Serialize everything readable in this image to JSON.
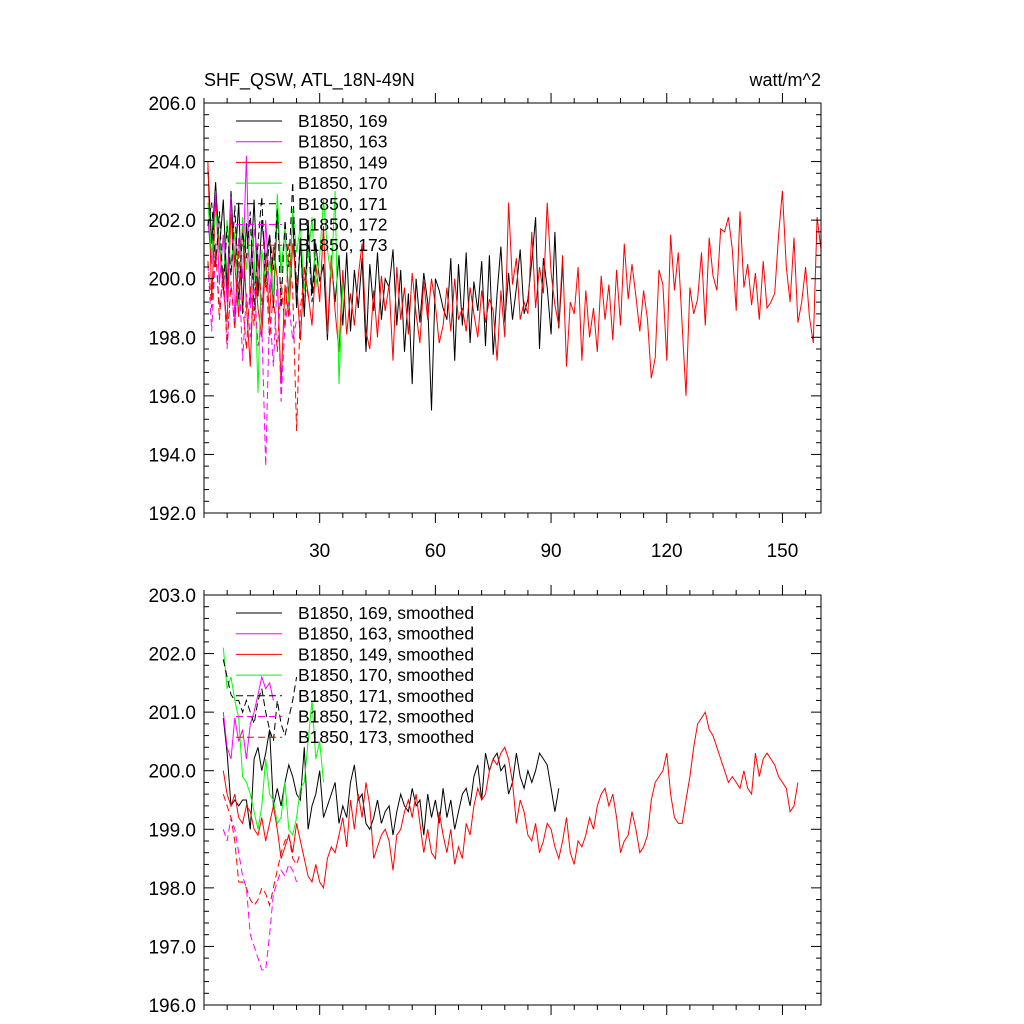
{
  "chart_data": [
    {
      "type": "line",
      "title_left": "SHF_QSW, ATL_18N-49N",
      "title_right": "watt/m^2",
      "xlim": [
        0,
        160
      ],
      "ylim": [
        192.0,
        206.0
      ],
      "yticks": [
        "192.0",
        "194.0",
        "196.0",
        "198.0",
        "200.0",
        "202.0",
        "204.0",
        "206.0"
      ],
      "xticks": [
        "30",
        "60",
        "90",
        "120",
        "150"
      ],
      "grid": false,
      "legend_position": "top-left",
      "series": [
        {
          "name": "B1850, 169",
          "color": "#000000",
          "dash": false,
          "x_start": 1,
          "values": [
            203.8,
            201.2,
            203.3,
            201.0,
            202.7,
            199.6,
            203.0,
            200.4,
            202.6,
            198.8,
            201.9,
            200.1,
            202.7,
            199.4,
            202.0,
            200.6,
            201.5,
            199.0,
            202.4,
            200.2,
            201.7,
            199.3,
            202.2,
            199.0,
            201.4,
            198.7,
            202.0,
            199.5,
            201.2,
            199.9,
            200.5,
            197.9,
            200.6,
            199.2,
            200.8,
            198.4,
            200.9,
            198.2,
            200.3,
            199.0,
            200.7,
            197.5,
            200.5,
            198.9,
            200.9,
            198.6,
            200.0,
            199.7,
            201.0,
            198.4,
            200.3,
            197.5,
            199.5,
            196.4,
            200.0,
            198.5,
            200.2,
            199.2,
            195.5,
            200.0,
            199.6,
            199.0,
            198.6,
            200.7,
            197.2,
            200.5,
            198.4,
            200.9,
            197.8,
            199.9,
            198.9,
            200.6,
            197.7,
            200.8,
            197.4,
            199.5,
            201.1,
            198.5,
            200.2,
            198.6,
            199.7,
            201.0,
            198.8,
            199.3,
            200.6,
            202.1,
            197.6,
            200.7,
            199.7,
            198.1,
            201.6,
            198.3,
            200.4
          ]
        },
        {
          "name": "B1850, 163",
          "color": "#ff00ff",
          "dash": false,
          "x_start": 1,
          "values": [
            202.0,
            200.5,
            203.0,
            199.8,
            201.5,
            199.2,
            202.8,
            198.6,
            201.4,
            200.0,
            204.2,
            199.0,
            201.7,
            200.8,
            198.4,
            202.0,
            199.5,
            201.0
          ]
        },
        {
          "name": "B1850, 149",
          "color": "#ff0000",
          "dash": false,
          "x_start": 1,
          "values": [
            204.0,
            199.3,
            202.6,
            201.1,
            199.6,
            198.5,
            202.2,
            200.5,
            198.7,
            201.9,
            199.1,
            197.0,
            200.6,
            199.0,
            198.0,
            200.8,
            198.7,
            201.1,
            200.0,
            196.4,
            199.8,
            198.7,
            201.2,
            199.9,
            197.9,
            200.4,
            199.5,
            198.4,
            200.5,
            199.2,
            201.8,
            198.1,
            200.8,
            198.9,
            197.5,
            200.3,
            198.1,
            199.5,
            198.4,
            200.1,
            201.2,
            198.2,
            197.6,
            199.6,
            198.0,
            200.1,
            198.9,
            199.8,
            197.2,
            200.4,
            198.6,
            199.7,
            198.1,
            200.2,
            198.8,
            197.8,
            199.9,
            198.6,
            200.0,
            199.1,
            197.8,
            198.4,
            199.7,
            198.2,
            200.0,
            198.6,
            199.0,
            198.2,
            199.7,
            198.8,
            198.0,
            199.6,
            198.5,
            199.3,
            198.9,
            197.2,
            199.6,
            198.0,
            202.6,
            199.8,
            200.7,
            198.6,
            199.2,
            198.8,
            201.6,
            199.0,
            200.4,
            199.5,
            202.6,
            200.2,
            199.1,
            198.4,
            200.8,
            197.0,
            199.2,
            198.8,
            200.4,
            197.2,
            199.6,
            198.0,
            199.0,
            197.5,
            200.1,
            198.6,
            199.8,
            197.9,
            200.3,
            198.4,
            201.2,
            199.3,
            200.5,
            199.4,
            198.2,
            199.6,
            198.6,
            196.6,
            197.3,
            200.3,
            199.8,
            197.2,
            201.5,
            199.6,
            200.9,
            198.4,
            196.0,
            199.7,
            198.8,
            199.3,
            200.9,
            198.4,
            201.4,
            200.1,
            199.6,
            201.7,
            201.6,
            202.1,
            201.0,
            198.9,
            202.3,
            199.7,
            200.5,
            199.1,
            200.2,
            198.6,
            200.6,
            199.0,
            199.2,
            199.5,
            201.5,
            203.0,
            200.4,
            199.2,
            201.4,
            198.5,
            199.2,
            200.4,
            198.7,
            197.8,
            202.1,
            201.0
          ]
        },
        {
          "name": "B1850, 170",
          "color": "#00ff00",
          "dash": false,
          "x_start": 1,
          "values": [
            202.6,
            200.8,
            202.3,
            201.4,
            199.9,
            202.0,
            200.4,
            201.6,
            199.1,
            202.1,
            200.3,
            201.7,
            200.9,
            196.1,
            201.0,
            199.8,
            200.6,
            199.4,
            202.9,
            200.2,
            201.7,
            199.0,
            202.4,
            200.9,
            201.8,
            199.6,
            200.7,
            202.1,
            199.7,
            200.8,
            202.7,
            201.0,
            200.0,
            203.0,
            196.4,
            199.8
          ]
        },
        {
          "name": "B1850, 171",
          "color": "#000000",
          "dash": true,
          "x_start": 1,
          "values": [
            201.8,
            202.6,
            200.4,
            202.3,
            199.6,
            201.8,
            200.1,
            202.5,
            199.3,
            201.6,
            200.7,
            202.3,
            198.9,
            201.2,
            202.8,
            199.7,
            201.5,
            200.3,
            202.4,
            199.0,
            202.0,
            200.4,
            203.3,
            199.5,
            201.2,
            198.8,
            201.5,
            199.2,
            200.7
          ]
        },
        {
          "name": "B1850, 172",
          "color": "#ff00ff",
          "dash": true,
          "x_start": 1,
          "values": [
            200.5,
            198.2,
            201.0,
            199.0,
            200.2,
            197.6,
            199.8,
            198.3,
            200.6,
            197.2,
            199.5,
            198.0,
            199.9,
            197.7,
            198.4,
            193.6,
            199.0,
            197.0,
            200.1,
            195.8,
            198.5,
            199.2,
            197.9,
            198.6
          ]
        },
        {
          "name": "B1850, 173",
          "color": "#ff0000",
          "dash": true,
          "x_start": 1,
          "values": [
            200.6,
            199.0,
            201.2,
            198.6,
            200.4,
            197.8,
            199.9,
            198.3,
            201.0,
            199.2,
            197.6,
            199.8,
            198.4,
            200.7,
            199.1,
            200.2,
            198.0,
            199.5,
            197.5,
            199.9,
            198.3,
            201.2,
            199.6,
            194.8,
            199.0,
            200.1,
            199.4
          ]
        }
      ]
    },
    {
      "type": "line",
      "xlim": [
        0,
        160
      ],
      "ylim": [
        196.0,
        203.0
      ],
      "yticks": [
        "196.0",
        "197.0",
        "198.0",
        "199.0",
        "200.0",
        "201.0",
        "202.0",
        "203.0"
      ],
      "grid": false,
      "legend_position": "top-left",
      "series": [
        {
          "name": "B1850, 169, smoothed",
          "color": "#000000",
          "dash": false,
          "x_start": 5,
          "values": [
            200.9,
            200.3,
            199.4,
            199.5,
            199.4,
            199.5,
            199.5,
            199.0,
            200.2,
            200.4,
            200.0,
            200.3,
            200.7,
            199.4,
            199.7,
            199.4,
            199.8,
            200.1,
            199.9,
            199.6,
            199.5,
            200.4,
            199.0,
            199.4,
            199.6,
            200.0,
            199.2,
            199.4,
            199.6,
            199.8,
            199.1,
            199.4,
            199.2,
            199.8,
            200.1,
            199.5,
            199.6,
            199.1,
            199.0,
            199.2,
            199.5,
            199.1,
            199.3,
            199.4,
            198.9,
            199.3,
            199.6,
            199.4,
            199.3,
            199.7,
            199.4,
            199.5,
            198.9,
            199.6,
            199.2,
            199.5,
            199.1,
            199.7,
            199.2,
            199.5,
            199.0,
            199.3,
            199.6,
            199.7,
            199.4,
            199.9,
            200.1,
            199.5,
            200.3,
            200.0,
            200.2,
            200.3,
            200.0,
            200.1,
            199.6,
            199.8,
            200.3,
            199.9,
            199.7,
            200.0,
            199.8,
            200.0,
            200.3,
            200.2,
            200.1,
            199.7,
            199.3,
            199.7
          ]
        },
        {
          "name": "B1850, 163, smoothed",
          "color": "#ff00ff",
          "dash": false,
          "x_start": 5,
          "values": [
            201.0,
            200.4,
            200.2,
            200.9,
            200.5,
            200.7,
            200.2,
            200.8,
            201.0,
            201.3,
            201.6,
            201.4,
            201.5,
            201.2
          ]
        },
        {
          "name": "B1850, 149, smoothed",
          "color": "#ff0000",
          "dash": false,
          "x_start": 5,
          "values": [
            200.0,
            199.6,
            199.4,
            199.6,
            199.2,
            199.1,
            199.4,
            199.3,
            199.0,
            198.9,
            199.2,
            198.8,
            199.1,
            199.4,
            199.0,
            198.5,
            198.7,
            198.9,
            198.6,
            199.1,
            198.8,
            198.5,
            198.2,
            198.1,
            198.4,
            198.1,
            198.0,
            198.5,
            198.7,
            198.6,
            198.9,
            199.2,
            198.7,
            199.5,
            199.0,
            199.6,
            199.2,
            199.8,
            199.4,
            198.5,
            198.7,
            198.9,
            199.0,
            198.8,
            198.3,
            198.9,
            199.0,
            199.3,
            199.5,
            199.2,
            199.6,
            199.1,
            198.6,
            199.0,
            198.6,
            198.5,
            199.3,
            198.9,
            198.6,
            199.0,
            198.4,
            198.7,
            198.5,
            199.1,
            198.9,
            199.4,
            199.7,
            199.5,
            199.6,
            200.0,
            200.2,
            200.1,
            200.3,
            200.4,
            200.2,
            199.8,
            199.1,
            199.5,
            199.3,
            198.9,
            198.8,
            199.1,
            198.6,
            198.8,
            199.1,
            199.0,
            198.7,
            198.5,
            198.8,
            199.2,
            198.6,
            198.4,
            198.8,
            198.7,
            198.9,
            199.2,
            199.0,
            199.4,
            199.6,
            199.7,
            199.4,
            199.6,
            199.2,
            198.6,
            198.8,
            198.9,
            199.3,
            199.0,
            198.6,
            198.7,
            198.9,
            199.5,
            199.8,
            199.9,
            200.0,
            200.3,
            199.6,
            199.2,
            199.1,
            199.1,
            199.5,
            199.9,
            200.4,
            200.8,
            200.9,
            201.0,
            200.7,
            200.6,
            200.4,
            200.2,
            200.0,
            199.8,
            199.9,
            199.8,
            199.7,
            200.0,
            199.7,
            199.6,
            200.3,
            199.9,
            200.2,
            200.3,
            200.2,
            200.1,
            199.9,
            199.8,
            199.7,
            199.3,
            199.4,
            199.8
          ]
        },
        {
          "name": "B1850, 170, smoothed",
          "color": "#00ff00",
          "dash": false,
          "x_start": 5,
          "values": [
            202.1,
            201.4,
            201.6,
            201.2,
            200.9,
            199.9,
            199.8,
            199.6,
            199.3,
            199.0,
            199.4,
            200.2,
            199.6,
            199.5,
            199.1,
            199.2,
            199.8,
            199.0,
            198.9,
            199.2,
            199.7,
            199.8,
            200.5,
            201.2,
            200.2,
            200.5,
            199.8
          ]
        },
        {
          "name": "B1850, 171, smoothed",
          "color": "#000000",
          "dash": true,
          "x_start": 5,
          "values": [
            201.9,
            201.6,
            201.3,
            201.2,
            201.2,
            201.0,
            201.2,
            201.0,
            200.8,
            201.2,
            201.4,
            201.0,
            200.7,
            200.5,
            201.2,
            200.8,
            200.6,
            200.9,
            201.2,
            201.6
          ]
        },
        {
          "name": "B1850, 172, smoothed",
          "color": "#ff00ff",
          "dash": true,
          "x_start": 5,
          "values": [
            199.0,
            198.8,
            199.2,
            199.0,
            198.6,
            198.2,
            198.0,
            197.2,
            197.0,
            196.8,
            196.6,
            196.6,
            197.2,
            197.9,
            198.1,
            198.3,
            198.2,
            198.4,
            198.3,
            198.1
          ]
        },
        {
          "name": "B1850, 173, smoothed",
          "color": "#ff0000",
          "dash": true,
          "x_start": 5,
          "values": [
            199.6,
            199.4,
            199.2,
            198.8,
            198.1,
            198.1,
            198.0,
            197.8,
            197.7,
            197.8,
            198.0,
            197.9,
            197.7,
            198.0,
            198.3,
            198.6,
            198.8,
            198.9,
            198.5,
            198.4,
            198.6
          ]
        }
      ]
    }
  ]
}
